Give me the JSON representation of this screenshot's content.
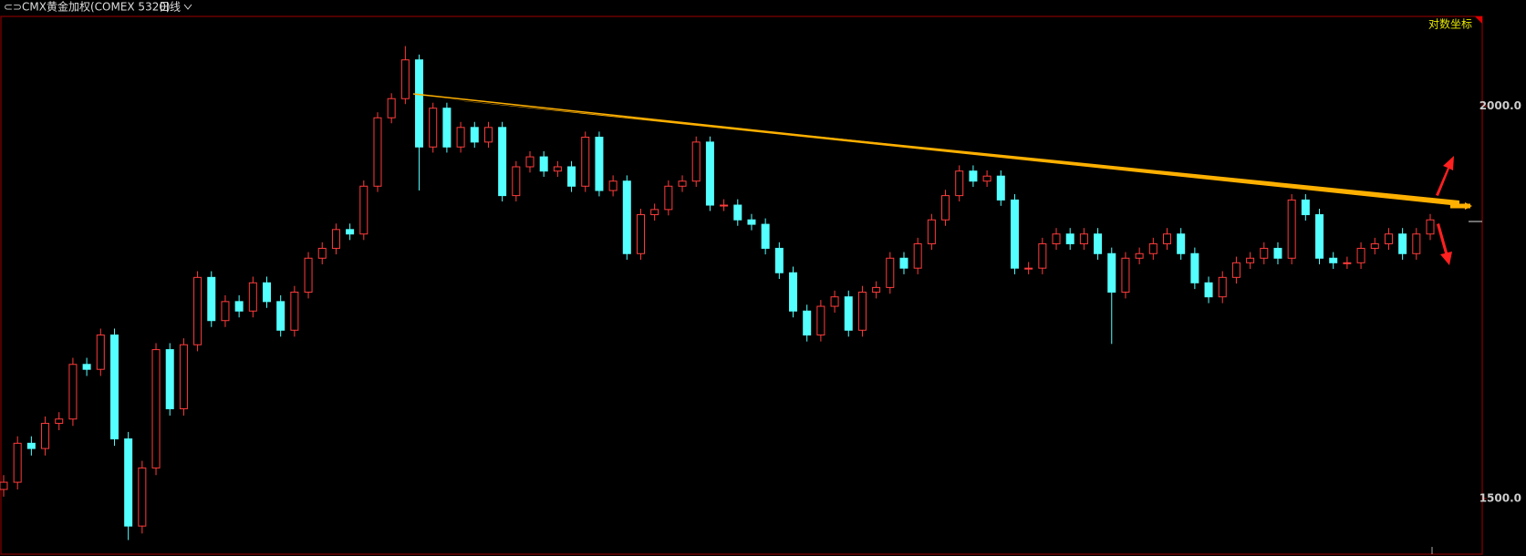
{
  "chart_data": {
    "type": "candlestick",
    "title": "CMX黄金加权(COMEX 5320)",
    "period": "日线",
    "scale_label": "对数坐标",
    "log_scale": true,
    "up_color": "#ff3c3c",
    "down_color": "#54ffff",
    "ylim": [
      1440,
      2136
    ],
    "yticks": [
      {
        "value": 2000,
        "label": "2000.0"
      },
      {
        "value": 1500,
        "label": "1500.0"
      }
    ],
    "open": [
      1510,
      1518,
      1562,
      1556,
      1585,
      1590,
      1655,
      1649,
      1691,
      1567,
      1470,
      1534,
      1673,
      1602,
      1679,
      1764,
      1709,
      1733,
      1721,
      1757,
      1733,
      1697,
      1745,
      1789,
      1802,
      1827,
      1821,
      1886,
      1983,
      2011,
      2069,
      1941,
      1997,
      1941,
      1969,
      1948,
      1969,
      1873,
      1913,
      1927,
      1907,
      1913,
      1886,
      1955,
      1880,
      1893,
      1795,
      1847,
      1854,
      1886,
      1893,
      1948,
      1860,
      1860,
      1840,
      1834,
      1802,
      1770,
      1721,
      1691,
      1727,
      1739,
      1697,
      1745,
      1751,
      1789,
      1776,
      1808,
      1840,
      1873,
      1907,
      1893,
      1900,
      1867,
      1776,
      1776,
      1808,
      1821,
      1808,
      1821,
      1795,
      1745,
      1789,
      1795,
      1808,
      1821,
      1795,
      1757,
      1739,
      1764,
      1783,
      1789,
      1802,
      1789,
      1867,
      1847,
      1789,
      1783,
      1783,
      1802,
      1808,
      1821,
      1795,
      1821
    ],
    "high": [
      1526,
      1570,
      1570,
      1593,
      1598,
      1663,
      1663,
      1699,
      1699,
      1575,
      1542,
      1681,
      1681,
      1687,
      1772,
      1772,
      1741,
      1741,
      1765,
      1765,
      1741,
      1753,
      1797,
      1810,
      1835,
      1835,
      1894,
      1991,
      2019,
      2090,
      2077,
      2005,
      2005,
      1977,
      1977,
      1977,
      1977,
      1921,
      1935,
      1935,
      1921,
      1921,
      1963,
      1963,
      1901,
      1901,
      1855,
      1862,
      1894,
      1901,
      1956,
      1956,
      1868,
      1868,
      1848,
      1842,
      1810,
      1778,
      1729,
      1735,
      1747,
      1747,
      1753,
      1759,
      1797,
      1797,
      1816,
      1848,
      1881,
      1915,
      1915,
      1908,
      1908,
      1875,
      1784,
      1816,
      1829,
      1829,
      1829,
      1829,
      1803,
      1797,
      1803,
      1816,
      1829,
      1829,
      1803,
      1765,
      1772,
      1791,
      1797,
      1810,
      1810,
      1875,
      1875,
      1855,
      1797,
      1791,
      1810,
      1816,
      1829,
      1829,
      1829,
      1848
    ],
    "low": [
      1502,
      1510,
      1548,
      1548,
      1577,
      1582,
      1641,
      1641,
      1559,
      1455,
      1462,
      1526,
      1594,
      1594,
      1671,
      1701,
      1701,
      1713,
      1713,
      1725,
      1689,
      1689,
      1737,
      1781,
      1794,
      1813,
      1813,
      1878,
      1975,
      2003,
      1880,
      1933,
      1933,
      1933,
      1940,
      1940,
      1865,
      1865,
      1905,
      1899,
      1899,
      1878,
      1878,
      1872,
      1872,
      1787,
      1787,
      1839,
      1846,
      1878,
      1885,
      1852,
      1852,
      1832,
      1826,
      1794,
      1762,
      1713,
      1683,
      1683,
      1719,
      1689,
      1689,
      1737,
      1743,
      1768,
      1768,
      1800,
      1832,
      1865,
      1885,
      1885,
      1859,
      1768,
      1768,
      1768,
      1800,
      1800,
      1800,
      1787,
      1680,
      1737,
      1781,
      1787,
      1800,
      1787,
      1749,
      1731,
      1731,
      1756,
      1775,
      1781,
      1781,
      1781,
      1839,
      1781,
      1775,
      1775,
      1775,
      1794,
      1800,
      1787,
      1787,
      1813
    ],
    "close": [
      1518,
      1562,
      1556,
      1585,
      1590,
      1655,
      1649,
      1691,
      1567,
      1470,
      1534,
      1673,
      1602,
      1679,
      1764,
      1709,
      1733,
      1721,
      1757,
      1733,
      1697,
      1745,
      1789,
      1802,
      1827,
      1821,
      1886,
      1983,
      2011,
      2069,
      1941,
      1997,
      1941,
      1969,
      1948,
      1969,
      1873,
      1913,
      1927,
      1907,
      1913,
      1886,
      1955,
      1880,
      1893,
      1795,
      1847,
      1854,
      1886,
      1893,
      1948,
      1860,
      1860,
      1840,
      1834,
      1802,
      1770,
      1721,
      1691,
      1727,
      1739,
      1697,
      1745,
      1751,
      1789,
      1776,
      1808,
      1840,
      1873,
      1907,
      1893,
      1900,
      1867,
      1776,
      1776,
      1808,
      1821,
      1808,
      1821,
      1795,
      1745,
      1789,
      1795,
      1808,
      1821,
      1795,
      1757,
      1739,
      1764,
      1783,
      1789,
      1802,
      1789,
      1867,
      1847,
      1789,
      1783,
      1783,
      1802,
      1808,
      1821,
      1795,
      1821,
      1840
    ]
  }
}
